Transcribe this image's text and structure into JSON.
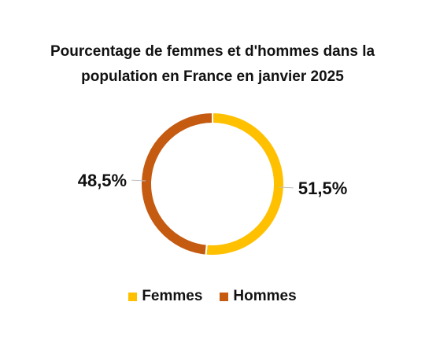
{
  "chart_data": {
    "type": "pie",
    "variant": "donut",
    "title_lines": [
      "Pourcentage de femmes et d'hommes dans la",
      "population en France en janvier 2025"
    ],
    "categories": [
      "Femmes",
      "Hommes"
    ],
    "values": [
      51.5,
      48.5
    ],
    "data_labels": [
      "51,5%",
      "48,5%"
    ],
    "colors": [
      "#FFC000",
      "#C55A11"
    ],
    "legend_position": "bottom"
  }
}
